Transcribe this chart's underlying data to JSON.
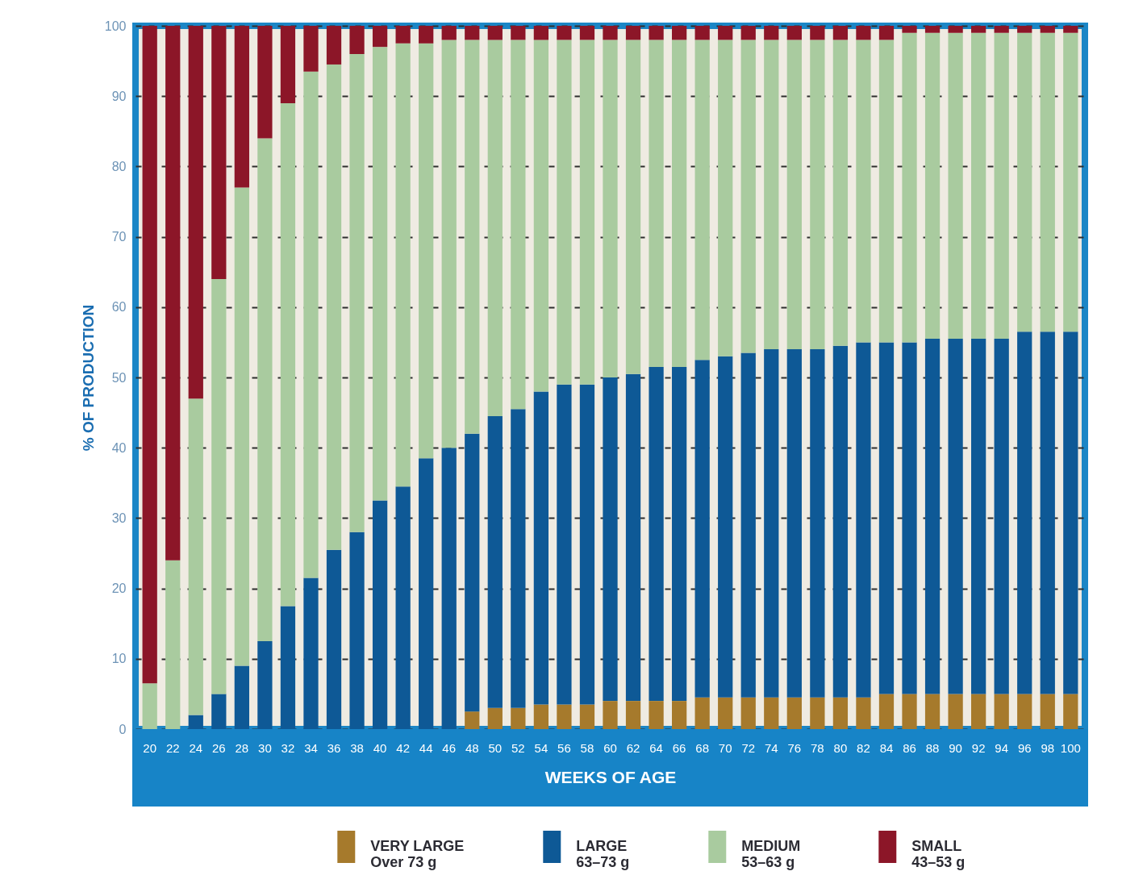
{
  "chart_data": {
    "type": "bar",
    "stacked": true,
    "xlabel": "WEEKS OF AGE",
    "ylabel": "% OF PRODUCTION",
    "categories": [
      "20",
      "22",
      "24",
      "26",
      "28",
      "30",
      "32",
      "34",
      "36",
      "38",
      "40",
      "42",
      "44",
      "46",
      "48",
      "50",
      "52",
      "54",
      "56",
      "58",
      "60",
      "62",
      "64",
      "66",
      "68",
      "70",
      "72",
      "74",
      "76",
      "78",
      "80",
      "82",
      "84",
      "86",
      "88",
      "90",
      "92",
      "94",
      "96",
      "98",
      "100"
    ],
    "ylim": [
      0,
      100
    ],
    "yticks": [
      0,
      10,
      20,
      30,
      40,
      50,
      60,
      70,
      80,
      90,
      100
    ],
    "grid": "y",
    "legend": "bottom",
    "series": [
      {
        "name": "VERY LARGE\nOver 73 g",
        "color": "#a67a2c",
        "values": [
          null,
          null,
          null,
          null,
          null,
          null,
          null,
          null,
          null,
          null,
          null,
          null,
          null,
          null,
          2.5,
          3,
          3,
          3.5,
          3.5,
          3.5,
          4,
          4,
          4,
          4,
          4.5,
          4.5,
          4.5,
          4.5,
          4.5,
          4.5,
          4.5,
          4.5,
          5,
          5,
          5,
          5,
          5,
          5,
          5,
          5,
          5
        ]
      },
      {
        "name": "LARGE\n63–73 g",
        "color": "#0e5996",
        "values": [
          null,
          null,
          2,
          5,
          9,
          12.5,
          17.5,
          21.5,
          25.5,
          28,
          32.5,
          34.5,
          38.5,
          40,
          39.5,
          41.5,
          42.5,
          44.5,
          45.5,
          45.5,
          46,
          46.5,
          47.5,
          47.5,
          48,
          48.5,
          49,
          49.5,
          49.5,
          49.5,
          50,
          50.5,
          50,
          50,
          50.5,
          50.5,
          50.5,
          50.5,
          51.5,
          51.5,
          51.5
        ]
      },
      {
        "name": "MEDIUM\n53–63 g",
        "color": "#a9cb9f",
        "values": [
          6.5,
          24,
          45,
          59,
          68,
          71.5,
          71.5,
          72,
          69,
          68,
          64.5,
          63,
          59,
          58,
          56,
          53.5,
          52.5,
          50,
          49,
          49,
          48,
          47.5,
          46.5,
          46.5,
          45.5,
          45,
          44.5,
          44,
          44,
          44,
          43.5,
          43,
          43,
          44,
          43.5,
          43.5,
          43.5,
          43.5,
          42.5,
          42.5,
          42.5
        ]
      },
      {
        "name": "SMALL\n43–53 g",
        "color": "#8c1628",
        "values": [
          93.5,
          76,
          53,
          36,
          23,
          16,
          11,
          6.5,
          5.5,
          4,
          3,
          2.5,
          2.5,
          2,
          2,
          2,
          2,
          2,
          2,
          2,
          2,
          2,
          2,
          2,
          2,
          2,
          2,
          2,
          2,
          2,
          2,
          2,
          2,
          1,
          1,
          1,
          1,
          1,
          1,
          1,
          1
        ]
      }
    ]
  }
}
